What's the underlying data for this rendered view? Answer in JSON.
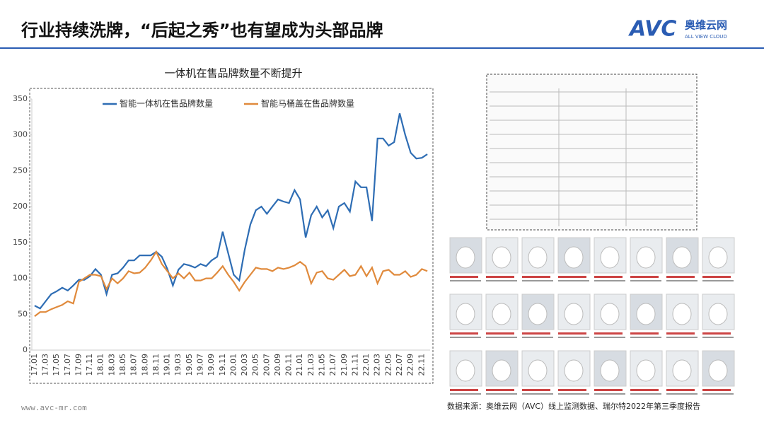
{
  "header": {
    "title": "行业持续洗牌，“后起之秀”也有望成为头部品牌",
    "logo": "AVC",
    "logo_cn": "奥维云网",
    "logo_en": "ALL VIEW CLOUD"
  },
  "chart_data": {
    "type": "line",
    "title": "一体机在售品牌数量不断提升",
    "categories": [
      "17.01",
      null,
      "17.03",
      null,
      "17.05",
      null,
      "17.07",
      null,
      "17.09",
      null,
      "17.11",
      null,
      "18.01",
      null,
      "18.03",
      null,
      "18.05",
      null,
      "18.07",
      null,
      "18.09",
      null,
      "18.11",
      null,
      "19.01",
      null,
      "19.03",
      null,
      "19.05",
      null,
      "19.07",
      null,
      "19.09",
      null,
      "19.11",
      null,
      "20.01",
      null,
      "20.03",
      null,
      "20.05",
      null,
      "20.07",
      null,
      "20.09",
      null,
      "20.11",
      null,
      "21.01",
      null,
      "21.03",
      null,
      "21.05",
      null,
      "21.07",
      null,
      "21.09",
      null,
      "21.11",
      null,
      "22.01",
      null,
      "22.03",
      null,
      "22.05",
      null,
      "22.07",
      null,
      "22.09",
      null,
      "22.11",
      null
    ],
    "series": [
      {
        "name": "智能一体机在售品牌数量",
        "color": "#2e6db4",
        "values": [
          62,
          58,
          68,
          78,
          82,
          87,
          83,
          90,
          98,
          98,
          103,
          113,
          105,
          78,
          105,
          107,
          115,
          125,
          125,
          132,
          132,
          132,
          137,
          130,
          113,
          90,
          112,
          120,
          118,
          115,
          120,
          117,
          125,
          130,
          165,
          135,
          105,
          97,
          140,
          175,
          195,
          200,
          190,
          200,
          210,
          207,
          205,
          223,
          210,
          157,
          188,
          200,
          185,
          195,
          170,
          200,
          205,
          193,
          235,
          227,
          227,
          180,
          295,
          295,
          285,
          290,
          330,
          300,
          275,
          267,
          268,
          273
        ]
      },
      {
        "name": "智能马桶盖在售品牌数量",
        "color": "#e08a3c",
        "values": [
          47,
          53,
          53,
          57,
          60,
          63,
          68,
          65,
          95,
          100,
          105,
          105,
          103,
          85,
          100,
          93,
          100,
          110,
          107,
          108,
          115,
          125,
          137,
          120,
          110,
          100,
          107,
          100,
          108,
          97,
          97,
          100,
          100,
          108,
          117,
          105,
          95,
          83,
          95,
          105,
          115,
          113,
          113,
          110,
          115,
          113,
          115,
          118,
          123,
          117,
          93,
          108,
          110,
          100,
          98,
          105,
          112,
          103,
          105,
          117,
          103,
          115,
          93,
          110,
          112,
          105,
          105,
          110,
          102,
          105,
          113,
          110
        ]
      }
    ],
    "ylim": [
      0,
      350
    ],
    "yticks": [
      0,
      50,
      100,
      150,
      200,
      250,
      300,
      350
    ],
    "grid": false,
    "legend": "top"
  },
  "footer": {
    "url": "www.avc-mr.com",
    "source": "数据来源：奥维云网（AVC）线上监测数据、瑞尔特2022年第三季度报告"
  }
}
